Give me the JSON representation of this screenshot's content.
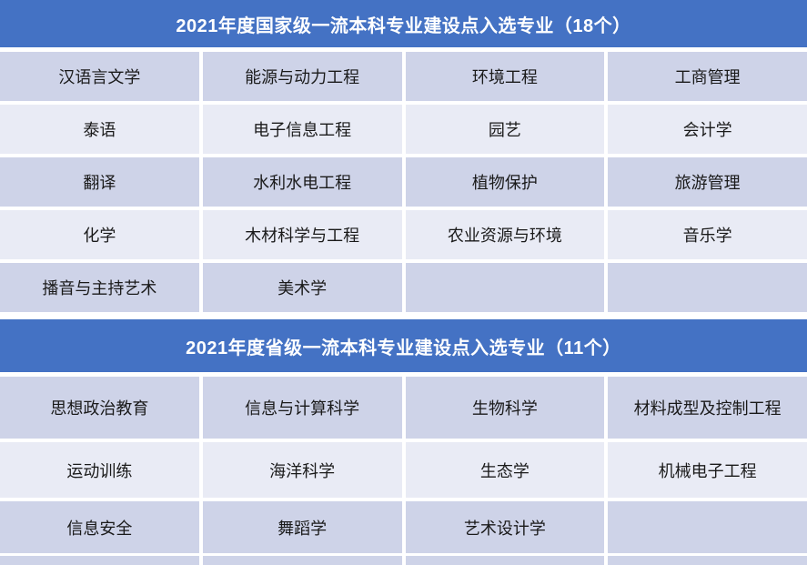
{
  "colors": {
    "header_blue": "#4472C4",
    "row_dark_lavender": "#CED3E8",
    "row_light_lavender": "#E9EBF5",
    "header_text": "#FFFFFF",
    "cell_text": "#1A1A1A",
    "page_background": "#FFFFFF"
  },
  "tables": [
    {
      "title": "2021年度国家级一流本科专业建设点入选专业（18个）",
      "rows": [
        [
          "汉语言文学",
          "能源与动力工程",
          "环境工程",
          "工商管理"
        ],
        [
          "泰语",
          "电子信息工程",
          "园艺",
          "会计学"
        ],
        [
          "翻译",
          "水利水电工程",
          "植物保护",
          "旅游管理"
        ],
        [
          "化学",
          "木材科学与工程",
          "农业资源与环境",
          "音乐学"
        ],
        [
          "播音与主持艺术",
          "美术学",
          "",
          ""
        ]
      ]
    },
    {
      "title": "2021年度省级一流本科专业建设点入选专业（11个）",
      "rows": [
        [
          "思想政治教育",
          "信息与计算科学",
          "生物科学",
          "材料成型及控制工程"
        ],
        [
          "运动训练",
          "海洋科学",
          "生态学",
          "机械电子工程"
        ],
        [
          "信息安全",
          "舞蹈学",
          "艺术设计学",
          ""
        ]
      ]
    }
  ]
}
